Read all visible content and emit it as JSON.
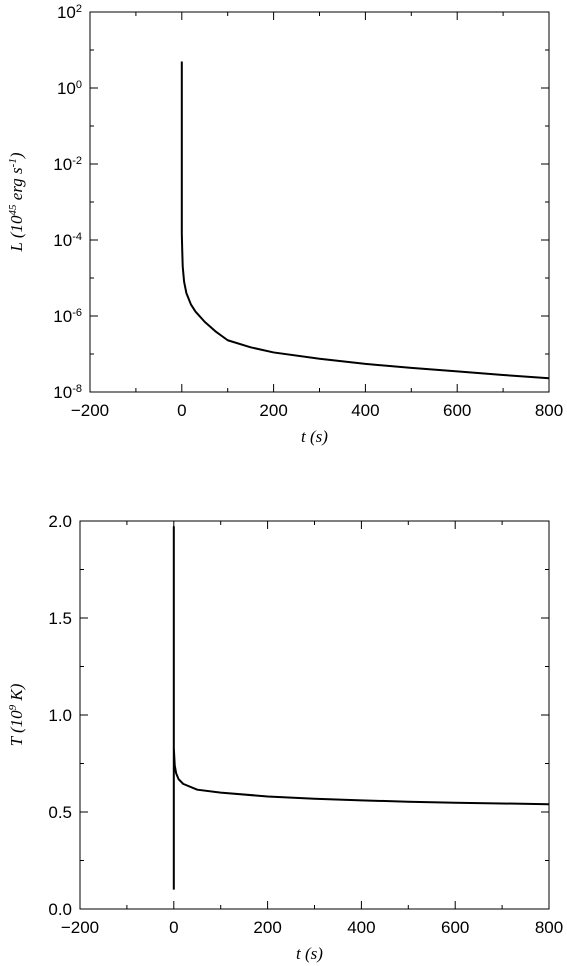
{
  "chart_data": [
    {
      "type": "line",
      "ylog": true,
      "color": "#000000",
      "xlabel": "t (s)",
      "ylabel": "L (10^{45} erg s^{-1})",
      "x": [
        0,
        0,
        0,
        1,
        2,
        5,
        10,
        20,
        30,
        50,
        75,
        100,
        150,
        200,
        300,
        400,
        500,
        600,
        700,
        800
      ],
      "values": [
        5,
        0.001,
        0.00015,
        5e-05,
        2e-05,
        8e-06,
        4e-06,
        2e-06,
        1.3e-06,
        7e-07,
        3.8e-07,
        2.3e-07,
        1.5e-07,
        1.1e-07,
        7.5e-08,
        5.5e-08,
        4.3e-08,
        3.5e-08,
        2.8e-08,
        2.3e-08
      ],
      "xlim": [
        -200,
        800
      ],
      "xticks": [
        {
          "value": -200,
          "label": "−200"
        },
        0,
        200,
        400,
        600,
        800
      ],
      "xminorticks": [
        -100,
        100,
        300,
        500,
        700
      ],
      "ylim": [
        1e-08,
        100
      ],
      "yticks": [
        {
          "value": 1e-08,
          "label": "10^{-8}"
        },
        {
          "value": 1e-06,
          "label": "10^{-6}"
        },
        {
          "value": 0.0001,
          "label": "10^{-4}"
        },
        {
          "value": 0.01,
          "label": "10^{-2}"
        },
        {
          "value": 1,
          "label": "10^{0}"
        },
        {
          "value": 100,
          "label": "10^{2}"
        }
      ],
      "yminorticks": [
        1e-07,
        1e-05,
        0.001,
        0.1,
        10
      ]
    },
    {
      "type": "line",
      "ylog": false,
      "color": "#000000",
      "xlabel": "t (s)",
      "ylabel": "T (10^{9} K)",
      "x": [
        0,
        0,
        0,
        2,
        5,
        10,
        20,
        50,
        100,
        200,
        300,
        400,
        500,
        600,
        700,
        800
      ],
      "values": [
        0.1,
        1.97,
        0.83,
        0.74,
        0.7,
        0.67,
        0.645,
        0.615,
        0.6,
        0.58,
        0.568,
        0.56,
        0.553,
        0.548,
        0.544,
        0.54
      ],
      "xlim": [
        -200,
        800
      ],
      "xticks": [
        {
          "value": -200,
          "label": "−200"
        },
        0,
        200,
        400,
        600,
        800
      ],
      "xminorticks": [
        -100,
        100,
        300,
        500,
        700
      ],
      "ylim": [
        0,
        2
      ],
      "yticks": [
        {
          "value": 0,
          "label": "0.0"
        },
        0.5,
        {
          "value": 1,
          "label": "1.0"
        },
        1.5,
        {
          "value": 2,
          "label": "2.0"
        }
      ],
      "yminorticks": [
        0.25,
        0.75,
        1.25,
        1.75
      ]
    }
  ]
}
